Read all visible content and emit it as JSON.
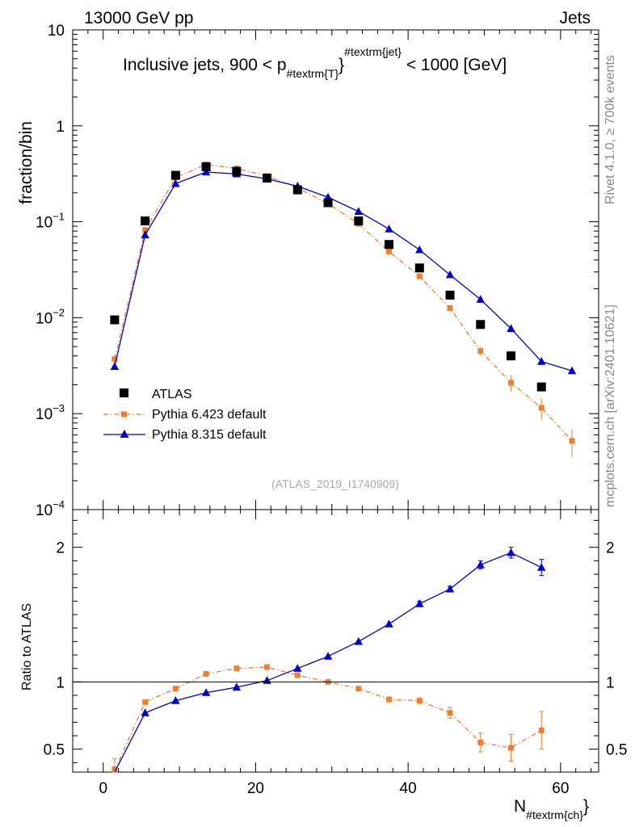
{
  "header": {
    "left": "13000 GeV pp",
    "right": "Jets"
  },
  "side": {
    "top": "Rivet 4.1.0, ≥ 700k events",
    "bottom": "mcplots.cern.ch [arXiv:2401.10621]"
  },
  "colors": {
    "atlas": "#000000",
    "pythia6": "#ef7f2f",
    "pythia8": "#0000cc"
  },
  "chart_data": [
    {
      "type": "scatter",
      "yscale": "log",
      "title": "Inclusive jets, 900 < p_{#textrm{T}}^{#textrm{jet}} < 1000 [GeV]",
      "title_parts": {
        "a": "Inclusive jets, 900 < p",
        "sub": "#textrm{T}",
        "sup": "#textrm{jet}",
        "b": "< 1000 [GeV]"
      },
      "ylabel": "fraction/bin",
      "xlim": [
        -4,
        65
      ],
      "ylim": [
        0.0001,
        10
      ],
      "y_ticks": [
        {
          "value": 10,
          "base": "10",
          "exp": ""
        },
        {
          "value": 1,
          "base": "1",
          "exp": ""
        },
        {
          "value": 0.1,
          "base": "10",
          "exp": "−1"
        },
        {
          "value": 0.01,
          "base": "10",
          "exp": "−2"
        },
        {
          "value": 0.001,
          "base": "10",
          "exp": "−3"
        },
        {
          "value": 0.0001,
          "base": "10",
          "exp": "−4"
        }
      ],
      "watermark": "(ATLAS_2019_I1740909)",
      "legend": [
        "ATLAS",
        "Pythia 6.423 default",
        "Pythia 8.315 default"
      ],
      "series": [
        {
          "name": "ATLAS",
          "x": [
            1.5,
            5.5,
            9.5,
            13.5,
            17.5,
            21.5,
            25.5,
            29.5,
            33.5,
            37.5,
            41.5,
            45.5,
            49.5,
            53.5,
            57.5
          ],
          "y": [
            0.0095,
            0.102,
            0.305,
            0.375,
            0.335,
            0.285,
            0.215,
            0.158,
            0.102,
            0.058,
            0.033,
            0.0172,
            0.0085,
            0.004,
            0.0019
          ]
        },
        {
          "name": "Pythia 6.423 default",
          "x": [
            1.5,
            5.5,
            9.5,
            13.5,
            17.5,
            21.5,
            25.5,
            29.5,
            33.5,
            37.5,
            41.5,
            45.5,
            49.5,
            53.5,
            57.5,
            61.5
          ],
          "y": [
            0.0037,
            0.082,
            0.29,
            0.395,
            0.36,
            0.3,
            0.225,
            0.155,
            0.095,
            0.049,
            0.027,
            0.0126,
            0.0045,
            0.0021,
            0.00115,
            0.00052
          ],
          "err": [
            0.0004,
            0.005,
            0.01,
            0.01,
            0.01,
            0.008,
            0.006,
            0.005,
            0.003,
            0.002,
            0.0012,
            0.0008,
            0.0005,
            0.0004,
            0.0003,
            0.00017
          ]
        },
        {
          "name": "Pythia 8.315 default",
          "x": [
            1.5,
            5.5,
            9.5,
            13.5,
            17.5,
            21.5,
            25.5,
            29.5,
            33.5,
            37.5,
            41.5,
            45.5,
            49.5,
            53.5,
            57.5,
            61.5
          ],
          "y": [
            0.0031,
            0.073,
            0.25,
            0.33,
            0.315,
            0.28,
            0.235,
            0.18,
            0.128,
            0.084,
            0.051,
            0.028,
            0.0155,
            0.0077,
            0.0035,
            0.0028
          ]
        }
      ]
    },
    {
      "type": "line",
      "ylabel": "Ratio to ATLAS",
      "xlabel": "N_{#textrm{ch}}",
      "xlabel_parts": {
        "a": "N",
        "sub": "#textrm{ch}"
      },
      "xlim": [
        -4,
        65
      ],
      "ylim": [
        0.33,
        2.28
      ],
      "x_ticks": [
        0,
        20,
        40,
        60
      ],
      "y_ticks": [
        0.5,
        1,
        2
      ],
      "series": [
        {
          "name": "Pythia 6.423 default",
          "x": [
            1.5,
            5.5,
            9.5,
            13.5,
            17.5,
            21.5,
            25.5,
            29.5,
            33.5,
            37.5,
            41.5,
            45.5,
            49.5,
            53.5,
            57.5
          ],
          "y": [
            0.34,
            0.85,
            0.95,
            1.06,
            1.1,
            1.11,
            1.05,
            1.0,
            0.95,
            0.87,
            0.86,
            0.77,
            0.55,
            0.51,
            0.64
          ],
          "err": [
            0.09,
            0.02,
            0.01,
            0.01,
            0.01,
            0.01,
            0.01,
            0.01,
            0.01,
            0.02,
            0.03,
            0.04,
            0.07,
            0.1,
            0.14
          ]
        },
        {
          "name": "Pythia 8.315 default",
          "x": [
            1.5,
            5.5,
            9.5,
            13.5,
            17.5,
            21.5,
            25.5,
            29.5,
            33.5,
            37.5,
            41.5,
            45.5,
            49.5,
            53.5,
            57.5
          ],
          "y": [
            0.326,
            0.77,
            0.86,
            0.92,
            0.96,
            1.01,
            1.1,
            1.19,
            1.3,
            1.43,
            1.58,
            1.69,
            1.87,
            1.96,
            1.85
          ],
          "err": [
            0.005,
            0.005,
            0.005,
            0.005,
            0.005,
            0.005,
            0.005,
            0.01,
            0.01,
            0.01,
            0.02,
            0.02,
            0.03,
            0.04,
            0.06
          ]
        }
      ]
    }
  ]
}
